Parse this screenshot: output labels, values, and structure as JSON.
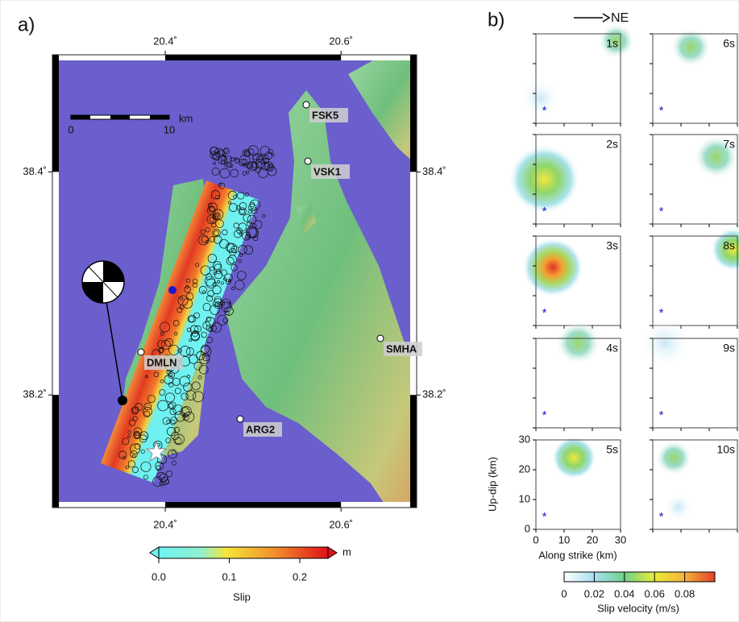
{
  "panel_a": {
    "label": "a)",
    "lonlim": [
      20.2716,
      20.686
    ],
    "latlim": [
      38.099,
      38.505
    ],
    "lonticks": [
      {
        "value": 20.4,
        "label": "20.4˚"
      },
      {
        "value": 20.6,
        "label": "20.6˚"
      }
    ],
    "latticks": [
      {
        "value": 38.4,
        "label": "38.4˚"
      },
      {
        "value": 38.2,
        "label": "38.2˚"
      }
    ],
    "scale_bar": {
      "unit": "km",
      "start": "0",
      "end": "10"
    },
    "stations": [
      "FSK5",
      "VSK1",
      "SMHA",
      "DMLN",
      "ARG2"
    ],
    "colorbar": {
      "title": "Slip",
      "unit": "m",
      "lim": [
        0,
        0.24
      ],
      "ticks": [
        {
          "value": 0,
          "label": "0.0"
        },
        0.1,
        0.2
      ]
    }
  },
  "panel_b": {
    "label": "b)",
    "direction": "NE",
    "frames": [
      "1s",
      "2s",
      "3s",
      "4s",
      "5s",
      "6s",
      "7s",
      "8s",
      "9s",
      "10s"
    ],
    "xlabel": "Along strike (km)",
    "ylabel": "Up-dip (km)",
    "xlim": [
      0,
      30
    ],
    "ylim": [
      0,
      30
    ],
    "xticks": [
      0,
      10,
      20,
      30
    ],
    "yticks": [
      0,
      10,
      20,
      30
    ],
    "colorbar": {
      "title": "Slip velocity (m/s)",
      "lim": [
        0,
        0.1
      ],
      "ticks": [
        0,
        0.02,
        0.04,
        0.06,
        0.08
      ]
    }
  }
}
